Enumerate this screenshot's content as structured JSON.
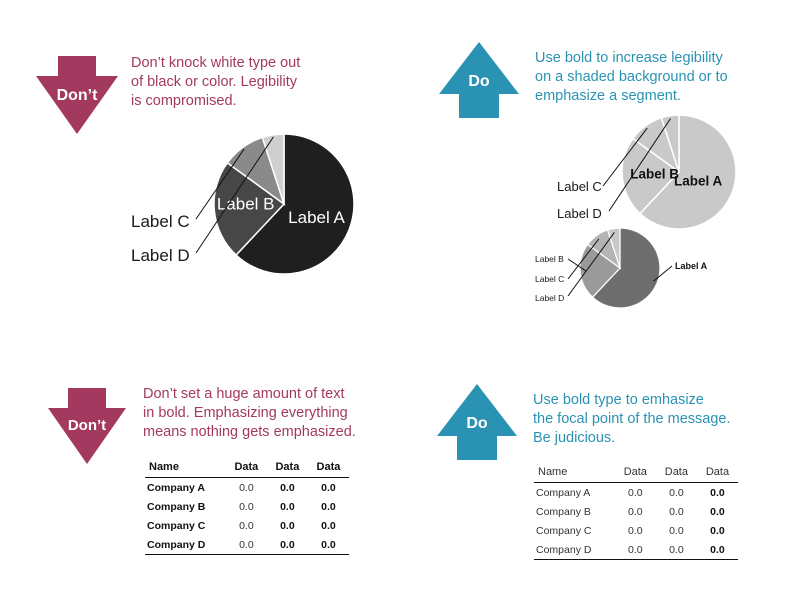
{
  "colors": {
    "dont": "#a3395f",
    "do": "#2a93b3"
  },
  "panels": [
    {
      "id": "pie-dont",
      "badge": "Don’t",
      "caption": [
        "Don’t knock white type out",
        "of black or color. Legibility",
        "is compromised."
      ]
    },
    {
      "id": "pie-do",
      "badge": "Do",
      "caption": [
        "Use bold to increase legibility",
        "on a shaded background or to",
        "emphasize a segment."
      ]
    },
    {
      "id": "table-dont",
      "badge": "Don’t",
      "caption": [
        "Don’t set a huge amount of text",
        "in bold. Emphasizing everything",
        "means nothing gets emphasized."
      ]
    },
    {
      "id": "table-do",
      "badge": "Do",
      "caption": [
        "Use bold type to emhasize",
        "the focal point of the message.",
        "Be judicious."
      ]
    }
  ],
  "chart_data": [
    {
      "type": "pie",
      "title": "",
      "labels": [
        "Label A",
        "Label B",
        "Label C",
        "Label D"
      ],
      "values": [
        62,
        23,
        10,
        5
      ],
      "colors": [
        "#1f1f1f",
        "#474747",
        "#8a8a8a",
        "#cfcfcf"
      ]
    },
    {
      "type": "pie",
      "title": "",
      "labels": [
        "Label A",
        "Label B",
        "Label C",
        "Label D"
      ],
      "values": [
        62,
        23,
        10,
        5
      ],
      "colors": [
        "#c9c9c9",
        "#c9c9c9",
        "#c9c9c9",
        "#c9c9c9"
      ]
    },
    {
      "type": "pie",
      "title": "",
      "labels": [
        "Label A",
        "Label B",
        "Label C",
        "Label D"
      ],
      "values": [
        62,
        23,
        10,
        5
      ],
      "colors": [
        "#6e6e6e",
        "#9a9a9a",
        "#b4b4b4",
        "#c8c8c8"
      ]
    },
    {
      "type": "table",
      "columns": [
        "Name",
        "Data",
        "Data",
        "Data"
      ],
      "rows": [
        [
          "Company A",
          "0.0",
          "0.0",
          "0.0"
        ],
        [
          "Company B",
          "0.0",
          "0.0",
          "0.0"
        ],
        [
          "Company C",
          "0.0",
          "0.0",
          "0.0"
        ],
        [
          "Company D",
          "0.0",
          "0.0",
          "0.0"
        ]
      ]
    },
    {
      "type": "table",
      "columns": [
        "Name",
        "Data",
        "Data",
        "Data"
      ],
      "rows": [
        [
          "Company A",
          "0.0",
          "0.0",
          "0.0"
        ],
        [
          "Company B",
          "0.0",
          "0.0",
          "0.0"
        ],
        [
          "Company C",
          "0.0",
          "0.0",
          "0.0"
        ],
        [
          "Company D",
          "0.0",
          "0.0",
          "0.0"
        ]
      ]
    }
  ]
}
